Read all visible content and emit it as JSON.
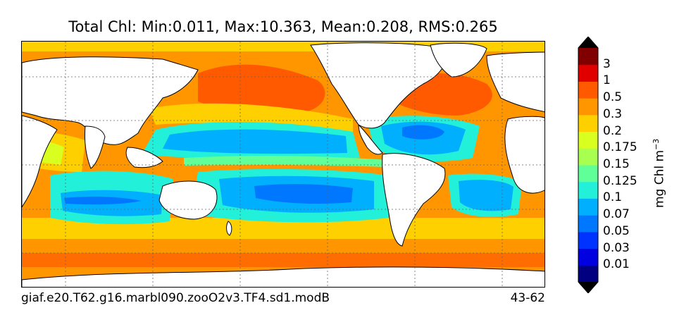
{
  "title": "Total Chl: Min:0.011, Max:10.363, Mean:0.208, RMS:0.265",
  "caption_left": "giaf.e20.T62.g16.marbl090.zooO2v3.TF4.sd1.modB",
  "caption_right": "43-62",
  "colorbar": {
    "label_text": "mg Chl m",
    "label_exp": "−3",
    "ticks": [
      "3",
      "1",
      "0.5",
      "0.3",
      "0.2",
      "0.175",
      "0.15",
      "0.125",
      "0.1",
      "0.07",
      "0.05",
      "0.03",
      "0.01"
    ],
    "colors": [
      "#000080",
      "#0000e0",
      "#0033ff",
      "#0077ff",
      "#00b0ff",
      "#22f0d8",
      "#60ff98",
      "#a8ff50",
      "#d8ff20",
      "#ffd000",
      "#ff9600",
      "#ff5a00",
      "#e00000",
      "#800000"
    ]
  },
  "colors": {
    "land": "#ffffff",
    "coast": "#000000",
    "grid": "#666666"
  }
}
